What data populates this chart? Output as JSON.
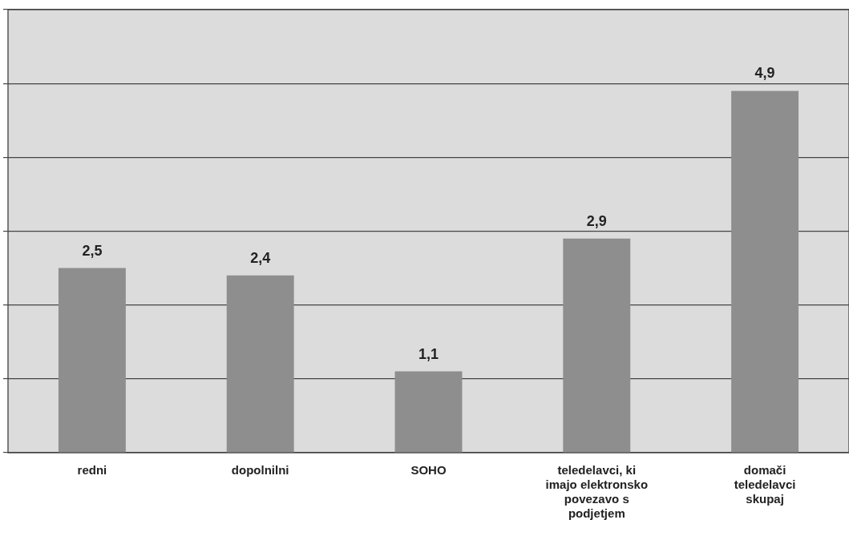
{
  "chart_data": {
    "type": "bar",
    "categories": [
      "redni",
      "dopolnilni",
      "SOHO",
      "teledelavci, ki imajo elektronsko povezavo s podjetjem",
      "domači teledelavci skupaj"
    ],
    "values": [
      2.5,
      2.4,
      1.1,
      2.9,
      4.9
    ],
    "value_labels": [
      "2,5",
      "2,4",
      "1,1",
      "2,9",
      "4,9"
    ],
    "color": "#8e8e8e",
    "tick_labels": "x",
    "grid": "y",
    "legend": false
  }
}
